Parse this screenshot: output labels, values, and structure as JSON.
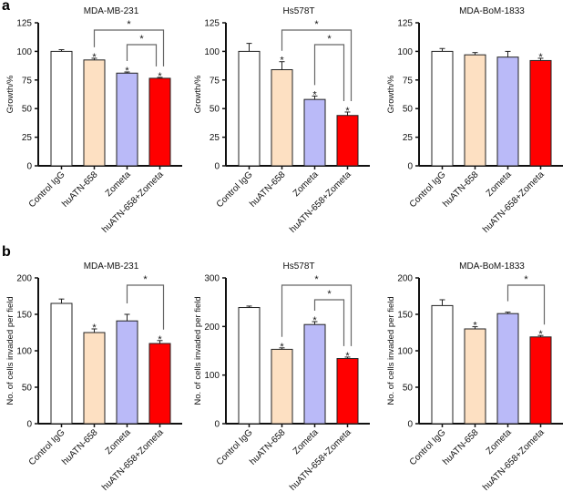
{
  "panel_labels": [
    "a",
    "b"
  ],
  "chart_data": [
    {
      "type": "bar",
      "panel": "a",
      "title": "MDA-MB-231",
      "ylabel": "Growth/%",
      "ylim": [
        0,
        125
      ],
      "yticks": [
        0,
        25,
        50,
        75,
        100,
        125
      ],
      "categories": [
        "Control IgG",
        "huATN-658",
        "Zometa",
        "huATN-658+Zometa"
      ],
      "values": [
        100,
        92.5,
        81,
        76.5
      ],
      "errors": [
        1.5,
        1.5,
        1,
        0.8
      ],
      "significant": [
        false,
        true,
        true,
        true
      ],
      "brackets": [
        [
          1,
          3
        ],
        [
          2,
          3
        ]
      ]
    },
    {
      "type": "bar",
      "panel": "a",
      "title": "Hs578T",
      "ylabel": "Growth/%",
      "ylim": [
        0,
        125
      ],
      "yticks": [
        0,
        25,
        50,
        75,
        100,
        125
      ],
      "categories": [
        "Control IgG",
        "huATN-658",
        "Zometa",
        "huATN-658+Zometa"
      ],
      "values": [
        100,
        84,
        58,
        44
      ],
      "errors": [
        7,
        7,
        3,
        3
      ],
      "significant": [
        false,
        true,
        true,
        true
      ],
      "brackets": [
        [
          1,
          3
        ],
        [
          2,
          3
        ]
      ]
    },
    {
      "type": "bar",
      "panel": "a",
      "title": "MDA-BoM-1833",
      "ylabel": "Growth/%",
      "ylim": [
        0,
        125
      ],
      "yticks": [
        0,
        25,
        50,
        75,
        100,
        125
      ],
      "categories": [
        "Control IgG",
        "huATN-658",
        "Zometa",
        "huATN-658+Zometa"
      ],
      "values": [
        100,
        97,
        95,
        92
      ],
      "errors": [
        2.5,
        2,
        5,
        2
      ],
      "significant": [
        false,
        false,
        false,
        true
      ],
      "brackets": []
    },
    {
      "type": "bar",
      "panel": "b",
      "title": "MDA-MB-231",
      "ylabel": "No. of cells invaded per field",
      "ylim": [
        0,
        200
      ],
      "yticks": [
        0,
        50,
        100,
        150,
        200
      ],
      "categories": [
        "Control IgG",
        "huATN-658",
        "Zometa",
        "huATN-658+Zometa"
      ],
      "values": [
        165,
        125,
        141,
        110
      ],
      "errors": [
        6,
        5,
        9,
        4
      ],
      "significant": [
        false,
        true,
        false,
        true
      ],
      "brackets": [
        [
          2,
          3
        ]
      ]
    },
    {
      "type": "bar",
      "panel": "b",
      "title": "Hs578T",
      "ylabel": "No. of cells invaded per field",
      "ylim": [
        0,
        300
      ],
      "yticks": [
        0,
        100,
        200,
        300
      ],
      "categories": [
        "Control IgG",
        "huATN-658",
        "Zometa",
        "huATN-658+Zometa"
      ],
      "values": [
        239,
        153,
        204,
        134
      ],
      "errors": [
        3,
        3,
        6,
        3
      ],
      "significant": [
        false,
        true,
        true,
        true
      ],
      "brackets": [
        [
          1,
          3
        ],
        [
          2,
          3
        ]
      ]
    },
    {
      "type": "bar",
      "panel": "b",
      "title": "MDA-BoM-1833",
      "ylabel": "No. of cells invaded per field",
      "ylim": [
        0,
        200
      ],
      "yticks": [
        0,
        50,
        100,
        150,
        200
      ],
      "categories": [
        "Control IgG",
        "huATN-658",
        "Zometa",
        "huATN-658+Zometa"
      ],
      "values": [
        162,
        130,
        151,
        119
      ],
      "errors": [
        8,
        3,
        2,
        2
      ],
      "significant": [
        false,
        true,
        false,
        true
      ],
      "brackets": [
        [
          2,
          3
        ]
      ]
    }
  ],
  "significance_marker": "*",
  "colors": [
    "#ffffff",
    "#fde0c2",
    "#babaf8",
    "#ff0000"
  ]
}
